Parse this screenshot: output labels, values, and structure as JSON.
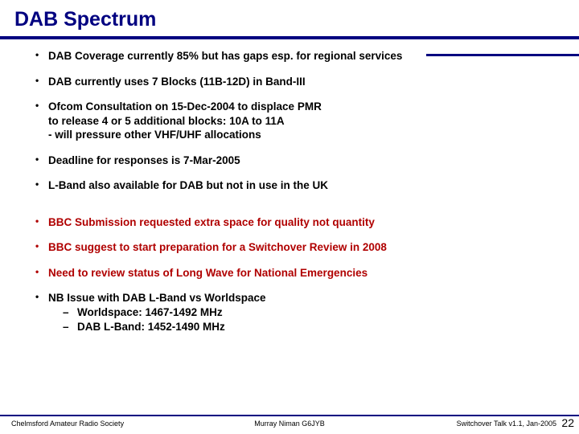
{
  "colors": {
    "title": "#000080",
    "accent_red": "#b00000",
    "text": "#000000",
    "background": "#ffffff"
  },
  "title": "DAB Spectrum",
  "bullets": {
    "b1": "DAB Coverage currently 85% but has gaps esp. for regional services",
    "b2": "DAB currently uses 7 Blocks (11B-12D) in Band-III",
    "b3_line1": "Ofcom Consultation on 15-Dec-2004 to displace PMR",
    "b3_line2": "to release 4 or 5 additional blocks: 10A to 11A",
    "b3_line3": " - will pressure other VHF/UHF allocations",
    "b4": "Deadline for responses is 7-Mar-2005",
    "b5": "L-Band also available for DAB but not in use in the UK",
    "b6": "BBC Submission requested extra space for quality not quantity",
    "b7": "BBC suggest to start preparation for a Switchover Review in 2008",
    "b8": "Need to review status of Long Wave for National Emergencies",
    "b9": "NB Issue with DAB L-Band vs Worldspace",
    "b9_sub1": "Worldspace:  1467-1492 MHz",
    "b9_sub2": "DAB L-Band:  1452-1490 MHz"
  },
  "footer": {
    "left": "Chelmsford Amateur Radio Society",
    "center": "Murray Niman G6JYB",
    "right": "Switchover Talk v1.1, Jan-2005",
    "page": "22"
  }
}
